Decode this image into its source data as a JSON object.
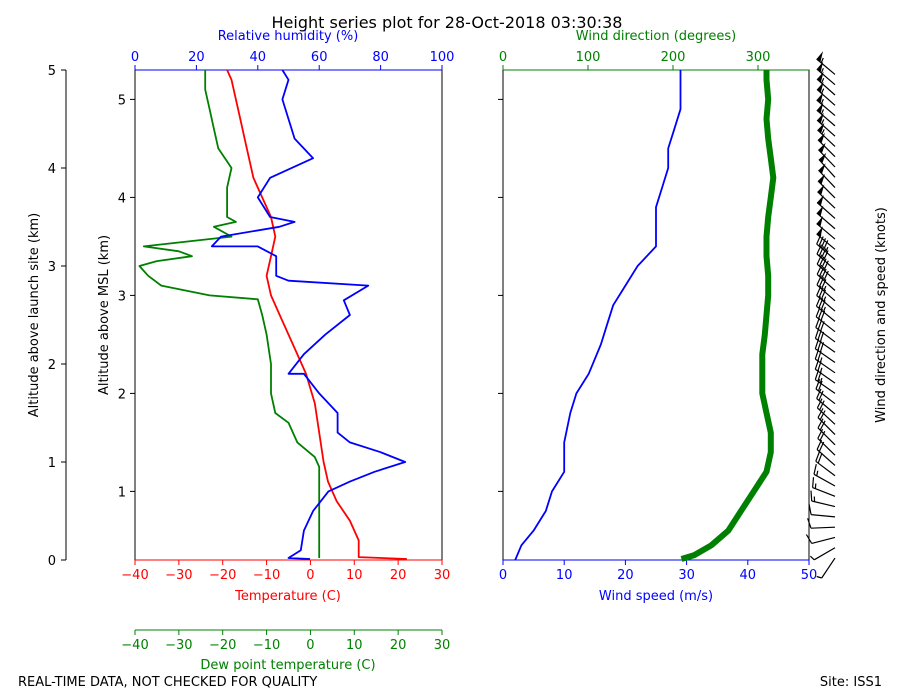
{
  "title": "Height series plot for 28-Oct-2018 03:30:38",
  "footer": {
    "left": "REAL-TIME DATA, NOT CHECKED FOR QUALITY",
    "right": "Site: ISS1"
  },
  "colors": {
    "temperature": "#ff0000",
    "dewpoint": "#008000",
    "rh": "#0000ff",
    "wind_speed": "#0000ff",
    "wind_dir": "#008000",
    "axis": "#000000"
  },
  "chart_data": [
    {
      "type": "line",
      "name": "thermo",
      "ylabel_left": "Altitude above launch site (km)",
      "ylabel_inner": "Altitude above MSL (km)",
      "launch_site_msl_km": 0.3,
      "ylim_msl": [
        0.3,
        5.3
      ],
      "yticks_msl": [
        1,
        2,
        3,
        4,
        5
      ],
      "yticks_launch": [
        0,
        1,
        2,
        3,
        4,
        5
      ],
      "x_bottom": {
        "label": "Temperature (C)",
        "lim": [
          -40,
          30
        ],
        "ticks": [
          -40,
          -30,
          -20,
          -10,
          0,
          10,
          20,
          30
        ]
      },
      "x_dew": {
        "label": "Dew point temperature (C)",
        "lim": [
          -40,
          30
        ],
        "ticks": [
          -40,
          -30,
          -20,
          -10,
          0,
          10,
          20,
          30
        ]
      },
      "x_top": {
        "label": "Relative humidity (%)",
        "lim": [
          0,
          100
        ],
        "ticks": [
          0,
          20,
          40,
          60,
          80,
          100
        ]
      },
      "series": [
        {
          "name": "Temperature",
          "axis": "temp",
          "points": [
            [
              22,
              0.31
            ],
            [
              11,
              0.33
            ],
            [
              11,
              0.5
            ],
            [
              9,
              0.7
            ],
            [
              6,
              0.9
            ],
            [
              4,
              1.1
            ],
            [
              3,
              1.3
            ],
            [
              2,
              1.6
            ],
            [
              1,
              1.9
            ],
            [
              -1,
              2.2
            ],
            [
              -4,
              2.5
            ],
            [
              -7,
              2.8
            ],
            [
              -9,
              3.0
            ],
            [
              -10,
              3.2
            ],
            [
              -9,
              3.4
            ],
            [
              -8,
              3.6
            ],
            [
              -9,
              3.8
            ],
            [
              -11,
              4.0
            ],
            [
              -13,
              4.2
            ],
            [
              -14,
              4.4
            ],
            [
              -15,
              4.6
            ],
            [
              -16,
              4.8
            ],
            [
              -17,
              5.0
            ],
            [
              -18,
              5.2
            ],
            [
              -19,
              5.3
            ]
          ]
        },
        {
          "name": "Dew point temperature",
          "axis": "temp",
          "points": [
            [
              2,
              0.32
            ],
            [
              2,
              0.6
            ],
            [
              2,
              0.9
            ],
            [
              2,
              1.1
            ],
            [
              2,
              1.25
            ],
            [
              1,
              1.35
            ],
            [
              -3,
              1.5
            ],
            [
              -5,
              1.7
            ],
            [
              -8,
              1.8
            ],
            [
              -9,
              2.0
            ],
            [
              -9,
              2.3
            ],
            [
              -10,
              2.6
            ],
            [
              -11,
              2.8
            ],
            [
              -12,
              2.96
            ],
            [
              -23,
              3.0
            ],
            [
              -34,
              3.1
            ],
            [
              -37,
              3.2
            ],
            [
              -39,
              3.3
            ],
            [
              -35,
              3.35
            ],
            [
              -27,
              3.4
            ],
            [
              -30,
              3.45
            ],
            [
              -38,
              3.5
            ],
            [
              -28,
              3.55
            ],
            [
              -18,
              3.6
            ],
            [
              -22,
              3.7
            ],
            [
              -17,
              3.75
            ],
            [
              -19,
              3.8
            ],
            [
              -19,
              4.1
            ],
            [
              -18,
              4.3
            ],
            [
              -21,
              4.5
            ],
            [
              -22,
              4.7
            ],
            [
              -23,
              4.9
            ],
            [
              -24,
              5.1
            ],
            [
              -24,
              5.3
            ]
          ]
        },
        {
          "name": "Relative humidity",
          "axis": "rh",
          "points": [
            [
              57,
              0.31
            ],
            [
              50,
              0.32
            ],
            [
              54,
              0.4
            ],
            [
              55,
              0.6
            ],
            [
              58,
              0.8
            ],
            [
              63,
              1.0
            ],
            [
              70,
              1.1
            ],
            [
              78,
              1.2
            ],
            [
              88,
              1.3
            ],
            [
              80,
              1.4
            ],
            [
              70,
              1.5
            ],
            [
              66,
              1.6
            ],
            [
              66,
              1.8
            ],
            [
              60,
              2.0
            ],
            [
              55,
              2.2
            ],
            [
              50,
              2.2
            ],
            [
              55,
              2.4
            ],
            [
              62,
              2.6
            ],
            [
              70,
              2.8
            ],
            [
              68,
              2.95
            ],
            [
              76,
              3.1
            ],
            [
              50,
              3.15
            ],
            [
              46,
              3.2
            ],
            [
              46,
              3.4
            ],
            [
              40,
              3.5
            ],
            [
              25,
              3.5
            ],
            [
              28,
              3.6
            ],
            [
              47,
              3.7
            ],
            [
              52,
              3.75
            ],
            [
              44,
              3.8
            ],
            [
              40,
              4.0
            ],
            [
              44,
              4.2
            ],
            [
              58,
              4.4
            ],
            [
              52,
              4.6
            ],
            [
              50,
              4.8
            ],
            [
              48,
              5.0
            ],
            [
              50,
              5.2
            ],
            [
              48,
              5.3
            ]
          ]
        }
      ]
    },
    {
      "type": "line",
      "name": "wind",
      "x_bottom": {
        "label": "Wind speed (m/s)",
        "lim": [
          0,
          50
        ],
        "ticks": [
          0,
          10,
          20,
          30,
          40,
          50
        ]
      },
      "x_top": {
        "label": "Wind direction (degrees)",
        "lim": [
          0,
          360
        ],
        "ticks": [
          0,
          100,
          200,
          300
        ]
      },
      "ylim_msl": [
        0.3,
        5.3
      ],
      "series": [
        {
          "name": "Wind speed",
          "axis": "speed",
          "points": [
            [
              2,
              0.3
            ],
            [
              3,
              0.45
            ],
            [
              5,
              0.6
            ],
            [
              7,
              0.8
            ],
            [
              8,
              1.0
            ],
            [
              10,
              1.2
            ],
            [
              10,
              1.5
            ],
            [
              11,
              1.8
            ],
            [
              12,
              2.0
            ],
            [
              14,
              2.2
            ],
            [
              16,
              2.5
            ],
            [
              17,
              2.7
            ],
            [
              18,
              2.9
            ],
            [
              20,
              3.1
            ],
            [
              22,
              3.3
            ],
            [
              25,
              3.5
            ],
            [
              25,
              3.7
            ],
            [
              25,
              3.9
            ],
            [
              26,
              4.1
            ],
            [
              27,
              4.3
            ],
            [
              27,
              4.5
            ],
            [
              28,
              4.7
            ],
            [
              29,
              4.9
            ],
            [
              29,
              5.1
            ],
            [
              29,
              5.3
            ]
          ]
        },
        {
          "name": "Wind direction",
          "axis": "dir",
          "points": [
            [
              210,
              0.31
            ],
            [
              225,
              0.35
            ],
            [
              245,
              0.45
            ],
            [
              265,
              0.6
            ],
            [
              280,
              0.8
            ],
            [
              295,
              1.0
            ],
            [
              310,
              1.2
            ],
            [
              315,
              1.4
            ],
            [
              315,
              1.6
            ],
            [
              310,
              1.8
            ],
            [
              305,
              2.0
            ],
            [
              305,
              2.2
            ],
            [
              305,
              2.4
            ],
            [
              308,
              2.6
            ],
            [
              310,
              2.8
            ],
            [
              312,
              3.0
            ],
            [
              312,
              3.2
            ],
            [
              310,
              3.4
            ],
            [
              310,
              3.6
            ],
            [
              312,
              3.8
            ],
            [
              315,
              4.0
            ],
            [
              318,
              4.2
            ],
            [
              315,
              4.4
            ],
            [
              312,
              4.6
            ],
            [
              310,
              4.8
            ],
            [
              312,
              5.0
            ],
            [
              310,
              5.2
            ],
            [
              310,
              5.3
            ]
          ]
        }
      ]
    },
    {
      "type": "barbs",
      "name": "barbs",
      "ylabel": "Wind direction and speed (knots)"
    }
  ]
}
